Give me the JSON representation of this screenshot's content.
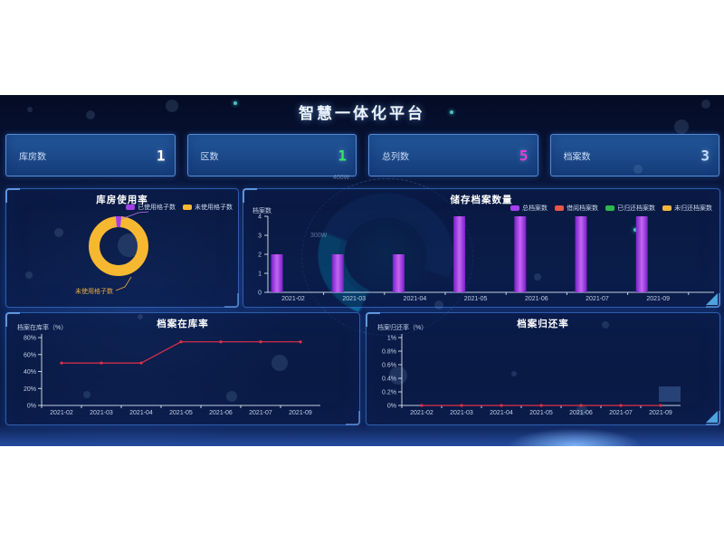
{
  "page": {
    "title": "智慧一体化平台"
  },
  "stats": [
    {
      "label": "库房数",
      "value": "1",
      "value_color": "#ffffff"
    },
    {
      "label": "区数",
      "value": "1",
      "value_color": "#32e86e"
    },
    {
      "label": "总列数",
      "value": "5",
      "value_color": "#e83ddb"
    },
    {
      "label": "档案数",
      "value": "3",
      "value_color": "#c2dcff"
    }
  ],
  "decor": {
    "gauge_label_top": "400W",
    "gauge_label_mid": "300W"
  },
  "chart_data": [
    {
      "id": "usage_donut",
      "type": "pie",
      "title": "库房使用率",
      "legend": [
        "已使用格子数",
        "未使用格子数"
      ],
      "series": [
        {
          "name": "已使用格子数",
          "value_pct": 3,
          "color": "#a43ee8"
        },
        {
          "name": "未使用格子数",
          "value_pct": 97,
          "color": "#f7b831"
        }
      ],
      "callout_label": "未使用格子数",
      "note": "slice percentages estimated from arc angles; no numeric labels shown"
    },
    {
      "id": "storage_bar",
      "type": "bar",
      "title": "储存档案数量",
      "ylabel": "档案数",
      "categories": [
        "2021-02",
        "2021-03",
        "2021-04",
        "2021-05",
        "2021-06",
        "2021-07",
        "2021-09"
      ],
      "values": [
        2,
        2,
        2,
        4,
        4,
        4,
        4
      ],
      "ylim": [
        0,
        4
      ],
      "yticks": [
        0,
        1,
        2,
        3,
        4
      ],
      "bar_color": "#a640f0",
      "legend": [
        {
          "label": "总档案数",
          "color": "#a640f0"
        },
        {
          "label": "借阅档案数",
          "color": "#e8564a"
        },
        {
          "label": "已归还档案数",
          "color": "#2db84d"
        },
        {
          "label": "未归还档案数",
          "color": "#f2b63c"
        }
      ],
      "legend_position": "top-right",
      "grid": false
    },
    {
      "id": "instock_line",
      "type": "line",
      "title": "档案在库率",
      "ylabel": "档案在库率（%）",
      "categories": [
        "2021-02",
        "2021-03",
        "2021-04",
        "2021-05",
        "2021-06",
        "2021-07",
        "2021-09"
      ],
      "values": [
        50,
        50,
        50,
        75,
        75,
        75,
        75
      ],
      "ylim": [
        0,
        80
      ],
      "yticks": [
        "0%",
        "20%",
        "40%",
        "60%",
        "80%"
      ],
      "line_color": "#e0304a",
      "grid": false
    },
    {
      "id": "return_line",
      "type": "line",
      "title": "档案归还率",
      "ylabel": "档案归还率（%）",
      "categories": [
        "2021-02",
        "2021-03",
        "2021-04",
        "2021-05",
        "2021-06",
        "2021-07",
        "2021-09"
      ],
      "values": [
        0,
        0,
        0,
        0,
        0,
        0,
        0
      ],
      "ylim": [
        0,
        1
      ],
      "yticks": [
        "0%",
        "0.2%",
        "0.4%",
        "0.6%",
        "0.8%",
        "1%"
      ],
      "line_color": "#e0304a",
      "grid": false
    }
  ]
}
